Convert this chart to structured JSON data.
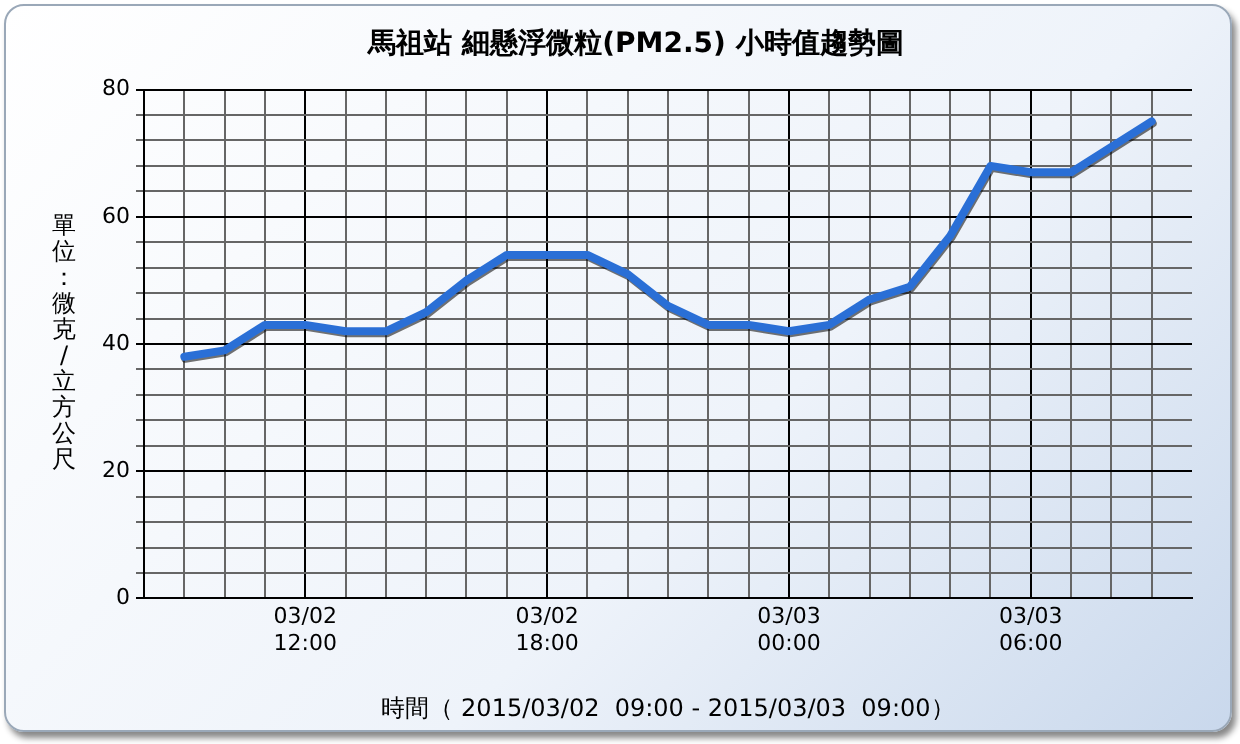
{
  "chart_data": {
    "type": "line",
    "title": "馬祖站 細懸浮微粒(PM2.5) 小時值趨勢圖",
    "xlabel": "時間（ 2015/03/02  09:00 - 2015/03/03  09:00）",
    "ylabel": "單位：微克/立方公尺",
    "x": [
      "2015-03-02T09:00",
      "2015-03-02T10:00",
      "2015-03-02T11:00",
      "2015-03-02T12:00",
      "2015-03-02T13:00",
      "2015-03-02T14:00",
      "2015-03-02T15:00",
      "2015-03-02T16:00",
      "2015-03-02T17:00",
      "2015-03-02T18:00",
      "2015-03-02T19:00",
      "2015-03-02T20:00",
      "2015-03-02T21:00",
      "2015-03-02T22:00",
      "2015-03-02T23:00",
      "2015-03-03T00:00",
      "2015-03-03T01:00",
      "2015-03-03T02:00",
      "2015-03-03T03:00",
      "2015-03-03T04:00",
      "2015-03-03T05:00",
      "2015-03-03T06:00",
      "2015-03-03T07:00",
      "2015-03-03T08:00",
      "2015-03-03T09:00"
    ],
    "series": [
      {
        "color": "#2a6fd6",
        "values": [
          38,
          39,
          43,
          43,
          42,
          42,
          45,
          50,
          54,
          54,
          54,
          51,
          46,
          43,
          43,
          42,
          43,
          47,
          49,
          57,
          68,
          67,
          67,
          71,
          75
        ]
      }
    ],
    "xlim": [
      "2015-03-02T08:00",
      "2015-03-03T10:00"
    ],
    "xticks": [
      {
        "value": "2015-03-02T09:00",
        "label": null
      },
      {
        "value": "2015-03-02T10:00",
        "label": null
      },
      {
        "value": "2015-03-02T11:00",
        "label": null
      },
      {
        "value": "2015-03-02T12:00",
        "label": "03/02\n12:00"
      },
      {
        "value": "2015-03-02T13:00",
        "label": null
      },
      {
        "value": "2015-03-02T14:00",
        "label": null
      },
      {
        "value": "2015-03-02T15:00",
        "label": null
      },
      {
        "value": "2015-03-02T16:00",
        "label": null
      },
      {
        "value": "2015-03-02T17:00",
        "label": null
      },
      {
        "value": "2015-03-02T18:00",
        "label": "03/02\n18:00"
      },
      {
        "value": "2015-03-02T19:00",
        "label": null
      },
      {
        "value": "2015-03-02T20:00",
        "label": null
      },
      {
        "value": "2015-03-02T21:00",
        "label": null
      },
      {
        "value": "2015-03-02T22:00",
        "label": null
      },
      {
        "value": "2015-03-02T23:00",
        "label": null
      },
      {
        "value": "2015-03-03T00:00",
        "label": "03/03\n00:00"
      },
      {
        "value": "2015-03-03T01:00",
        "label": null
      },
      {
        "value": "2015-03-03T02:00",
        "label": null
      },
      {
        "value": "2015-03-03T03:00",
        "label": null
      },
      {
        "value": "2015-03-03T04:00",
        "label": null
      },
      {
        "value": "2015-03-03T05:00",
        "label": null
      },
      {
        "value": "2015-03-03T06:00",
        "label": "03/03\n06:00"
      },
      {
        "value": "2015-03-03T07:00",
        "label": null
      },
      {
        "value": "2015-03-03T08:00",
        "label": null
      },
      {
        "value": "2015-03-03T09:00",
        "label": null
      }
    ],
    "ylim": [
      0,
      80
    ],
    "yticks": [
      0,
      {
        "value": 4,
        "label": null
      },
      {
        "value": 8,
        "label": null
      },
      {
        "value": 12,
        "label": null
      },
      {
        "value": 16,
        "label": null
      },
      20,
      {
        "value": 24,
        "label": null
      },
      {
        "value": 28,
        "label": null
      },
      {
        "value": 32,
        "label": null
      },
      {
        "value": 36,
        "label": null
      },
      40,
      {
        "value": 44,
        "label": null
      },
      {
        "value": 48,
        "label": null
      },
      {
        "value": 52,
        "label": null
      },
      {
        "value": 56,
        "label": null
      },
      60,
      {
        "value": 64,
        "label": null
      },
      {
        "value": 68,
        "label": null
      },
      {
        "value": 72,
        "label": null
      },
      {
        "value": 76,
        "label": null
      },
      80
    ],
    "grid": true,
    "legend": false,
    "marker": "none",
    "line_style": "solid"
  }
}
